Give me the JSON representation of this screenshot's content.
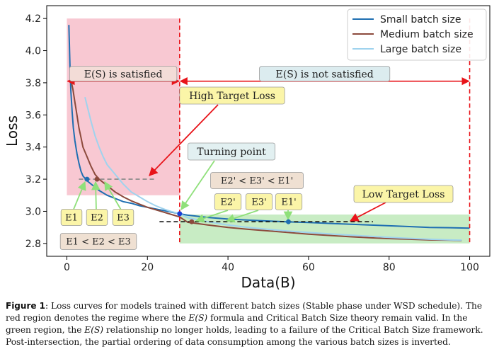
{
  "chart_data": {
    "type": "line",
    "xlabel": "Data(B)",
    "ylabel": "Loss",
    "xlim": [
      -5,
      105
    ],
    "ylim": [
      2.72,
      4.28
    ],
    "xticks": [
      0,
      20,
      40,
      60,
      80,
      100
    ],
    "yticks": [
      2.8,
      3.0,
      3.2,
      3.4,
      3.6,
      3.8,
      4.0,
      4.2
    ],
    "ytick_labels": [
      "2.8",
      "3.0",
      "3.2",
      "3.4",
      "3.6",
      "3.8",
      "4.0",
      "4.2"
    ],
    "legend_position": "top-right",
    "grid": false,
    "series": [
      {
        "name": "Small batch size",
        "color": "#1f6fb2",
        "x": [
          0.5,
          0.8,
          1.0,
          1.3,
          1.6,
          2.0,
          2.5,
          3.0,
          3.5,
          4.0,
          4.5,
          5.0,
          6.0,
          7.0,
          8.0,
          10.0,
          12.0,
          14.0,
          16.0,
          18.0,
          20.0,
          22.0,
          24.0,
          26.0,
          28.0,
          30.0,
          35.0,
          40.0,
          45.0,
          50.0,
          55.0,
          60.0,
          65.0,
          70.0,
          75.0,
          80.0,
          85.0,
          90.0,
          95.0,
          100.0
        ],
        "y": [
          4.16,
          3.88,
          3.75,
          3.62,
          3.52,
          3.44,
          3.36,
          3.3,
          3.25,
          3.22,
          3.205,
          3.19,
          3.17,
          3.15,
          3.13,
          3.1,
          3.08,
          3.06,
          3.05,
          3.035,
          3.025,
          3.015,
          3.005,
          2.995,
          2.985,
          2.976,
          2.962,
          2.952,
          2.945,
          2.94,
          2.934,
          2.93,
          2.925,
          2.92,
          2.915,
          2.91,
          2.905,
          2.9,
          2.898,
          2.895
        ]
      },
      {
        "name": "Medium batch size",
        "color": "#8c4a3c",
        "x": [
          1.0,
          1.5,
          2.0,
          2.5,
          3.0,
          3.5,
          4.0,
          5.0,
          6.0,
          7.0,
          8.0,
          10.0,
          12.0,
          14.0,
          16.0,
          18.0,
          20.0,
          22.0,
          24.0,
          26.0,
          28.0,
          30.0,
          35.0,
          40.0,
          45.0,
          50.0,
          55.0,
          60.0,
          65.0,
          70.0,
          75.0,
          80.0,
          85.0,
          90.0,
          95.0,
          98.0
        ],
        "y": [
          3.82,
          3.76,
          3.68,
          3.6,
          3.52,
          3.46,
          3.4,
          3.34,
          3.28,
          3.23,
          3.2,
          3.16,
          3.12,
          3.09,
          3.065,
          3.045,
          3.025,
          3.01,
          2.995,
          2.98,
          2.965,
          2.932,
          2.915,
          2.9,
          2.888,
          2.878,
          2.868,
          2.858,
          2.85,
          2.842,
          2.836,
          2.83,
          2.826,
          2.822,
          2.82,
          2.818
        ]
      },
      {
        "name": "Large batch size",
        "color": "#9fd3ee",
        "x": [
          4.5,
          5.0,
          6.0,
          7.0,
          8.0,
          9.0,
          10.0,
          11.0,
          12.0,
          14.0,
          16.0,
          18.0,
          20.0,
          22.0,
          24.0,
          26.0,
          28.0,
          30.0,
          35.0,
          40.0,
          45.0,
          50.0,
          55.0,
          60.0,
          65.0,
          70.0,
          75.0,
          80.0,
          85.0,
          90.0,
          95.0,
          98.0
        ],
        "y": [
          3.71,
          3.66,
          3.56,
          3.47,
          3.4,
          3.34,
          3.29,
          3.26,
          3.23,
          3.17,
          3.12,
          3.09,
          3.06,
          3.035,
          3.015,
          2.998,
          2.985,
          2.96,
          2.935,
          2.915,
          2.9,
          2.888,
          2.877,
          2.868,
          2.86,
          2.852,
          2.845,
          2.838,
          2.832,
          2.826,
          2.822,
          2.82
        ]
      }
    ],
    "regions": [
      {
        "color": "#f8c8d2",
        "x": [
          0,
          28
        ],
        "y": [
          3.1,
          4.2
        ]
      },
      {
        "color": "#c8ecc4",
        "x": [
          28,
          100
        ],
        "y": [
          2.8,
          2.98
        ]
      }
    ],
    "vlines": [
      28,
      100
    ],
    "arrows": [
      {
        "label": "E(S) is satisfied",
        "x": [
          0,
          28
        ],
        "y": 3.81
      },
      {
        "label": "E(S) is not satisfied",
        "x": [
          28,
          100
        ],
        "y": 3.81
      }
    ],
    "dashed_lines": [
      {
        "x": [
          3,
          22
        ],
        "y": 3.2,
        "color": "#888888"
      },
      {
        "x": [
          23,
          76
        ],
        "y": 2.935,
        "color": "#111111"
      }
    ],
    "points": [
      {
        "x": 5,
        "y": 3.2,
        "color": "#1f6fb2"
      },
      {
        "x": 7.5,
        "y": 3.2,
        "color": "#8c4a3c"
      },
      {
        "x": 28,
        "y": 2.985,
        "color": "#1a3fd6"
      },
      {
        "x": 31,
        "y": 2.935,
        "color": "#8c4a3c"
      },
      {
        "x": 55,
        "y": 2.935,
        "color": "#1f6fb2"
      }
    ],
    "annotations": {
      "high_target": "High Target Loss",
      "low_target": "Low Target Loss",
      "turning_point": "Turning point",
      "e1": "E1",
      "e2": "E2",
      "e3": "E3",
      "e_order": "E1 < E2 < E3",
      "e1p": "E1'",
      "e2p": "E2'",
      "e3p": "E3'",
      "ep_order": "E2' < E3' < E1'"
    }
  },
  "caption": {
    "label": "Figure 1",
    "sep": ": ",
    "line1": "Loss curves for models trained with different batch sizes (Stable phase under WSD schedule). The",
    "line2a": "red region denotes the regime where the ",
    "es": "E(S)",
    "line2b": " formula and Critical Batch Size theory remain valid. In the",
    "line3a": "green region, the ",
    "line3b": " relationship no longer holds, leading to a failure of the Critical Batch Size framework.",
    "line4": "Post-intersection, the partial ordering of data consumption among the various batch sizes is inverted."
  }
}
